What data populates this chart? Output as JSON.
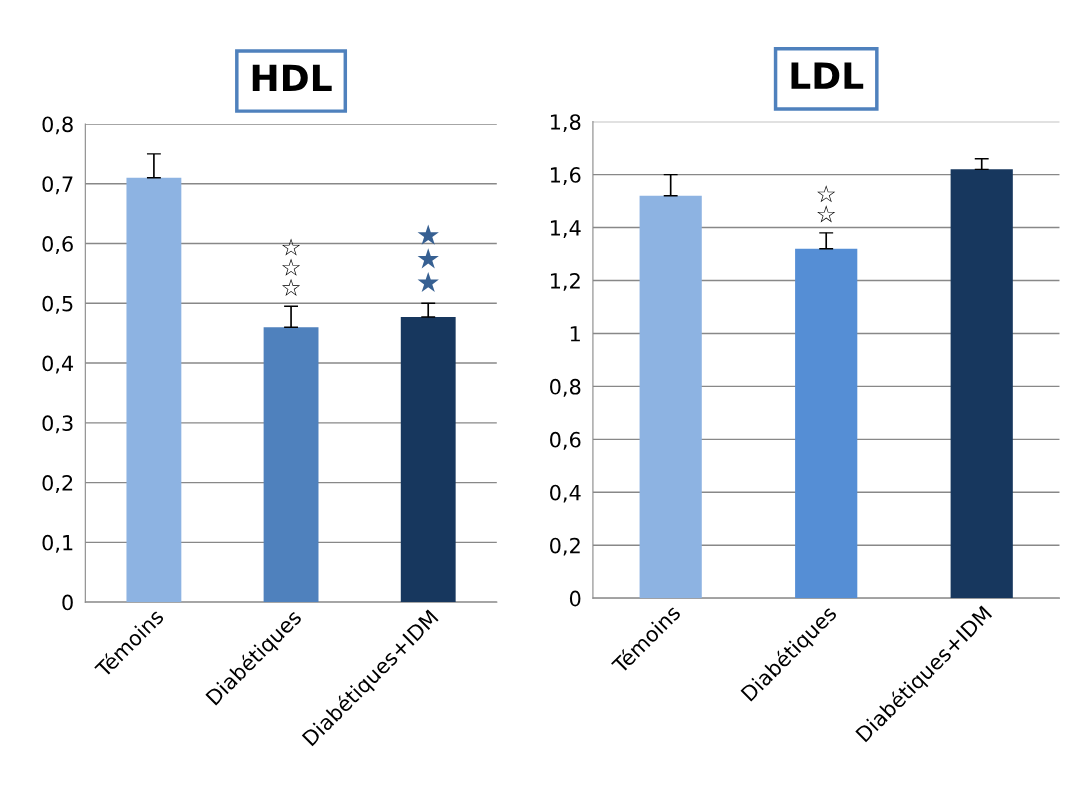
{
  "chart_data": [
    {
      "type": "bar",
      "title": "HDL",
      "categories": [
        "Témoins",
        "Diabétiques",
        "Diabétiques+IDM"
      ],
      "values": [
        0.71,
        0.46,
        0.477
      ],
      "colors": [
        "#8db3e2",
        "#4f81bd",
        "#17375e"
      ],
      "errors": [
        [
          0.71,
          0.75
        ],
        [
          0.46,
          0.495
        ],
        [
          0.477,
          0.5
        ]
      ],
      "ylim": [
        0,
        0.8
      ],
      "yticks": [
        {
          "value": 0,
          "label": "0"
        },
        {
          "value": 0.1,
          "label": "0,1"
        },
        {
          "value": 0.2,
          "label": "0,2"
        },
        {
          "value": 0.3,
          "label": "0,3"
        },
        {
          "value": 0.4,
          "label": "0,4"
        },
        {
          "value": 0.5,
          "label": "0,5"
        },
        {
          "value": 0.6,
          "label": "0,6"
        },
        {
          "value": 0.7,
          "label": "0,7"
        },
        {
          "value": 0.8,
          "label": "0,8"
        }
      ],
      "grid": "y",
      "annotations": [
        "☆\n☆\n☆",
        "★\n★\n★"
      ]
    },
    {
      "type": "bar",
      "title": "LDL",
      "categories": [
        "Témoins",
        "Diabétiques",
        "Diabétiques+IDM"
      ],
      "values": [
        1.52,
        1.32,
        1.62
      ],
      "colors": [
        "#8db3e2",
        "#558ed5",
        "#17375e"
      ],
      "errors": [
        [
          1.52,
          1.6
        ],
        [
          1.32,
          1.38
        ],
        [
          1.62,
          1.66
        ]
      ],
      "ylim": [
        0,
        1.8
      ],
      "yticks": [
        {
          "value": 0,
          "label": "0"
        },
        {
          "value": 0.2,
          "label": "0,2"
        },
        {
          "value": 0.4,
          "label": "0,4"
        },
        {
          "value": 0.6,
          "label": "0,6"
        },
        {
          "value": 0.8,
          "label": "0,8"
        },
        {
          "value": 1,
          "label": "1"
        },
        {
          "value": 1.2,
          "label": "1,2"
        },
        {
          "value": 1.4,
          "label": "1,4"
        },
        {
          "value": 1.6,
          "label": "1,6"
        },
        {
          "value": 1.8,
          "label": "1,8"
        }
      ],
      "grid": "y",
      "annotations": [
        "☆\n☆"
      ]
    }
  ]
}
